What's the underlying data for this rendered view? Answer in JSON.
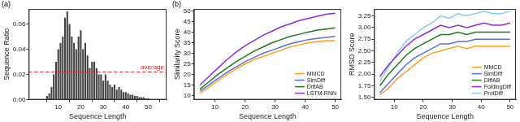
{
  "chart_data": [
    {
      "type": "bar",
      "panel_label": "(a)",
      "x_label": "Sequence Length",
      "y_label": "Sequence Ratio",
      "x": [
        5,
        6,
        7,
        8,
        9,
        10,
        11,
        12,
        13,
        14,
        15,
        16,
        17,
        18,
        19,
        20,
        21,
        22,
        23,
        24,
        25,
        26,
        27,
        28,
        29,
        30,
        31,
        32,
        33,
        34,
        35,
        36,
        37,
        38,
        39,
        40,
        41,
        42,
        43,
        44,
        45,
        46,
        47,
        48,
        49,
        50
      ],
      "values": [
        0.003,
        0.005,
        0.01,
        0.02,
        0.03,
        0.04,
        0.045,
        0.05,
        0.065,
        0.07,
        0.06,
        0.05,
        0.045,
        0.04,
        0.05,
        0.055,
        0.04,
        0.045,
        0.035,
        0.025,
        0.03,
        0.03,
        0.025,
        0.02,
        0.02,
        0.015,
        0.02,
        0.015,
        0.012,
        0.01,
        0.012,
        0.008,
        0.01,
        0.008,
        0.006,
        0.006,
        0.005,
        0.004,
        0.004,
        0.003,
        0.003,
        0.002,
        0.002,
        0.002,
        0.001,
        0.001
      ],
      "color": "#444444",
      "xlim": [
        3,
        52
      ],
      "xticks": [
        10,
        20,
        30,
        40,
        50
      ],
      "ylim": [
        0,
        0.072
      ],
      "yticks": [
        {
          "value": 0,
          "label": "0.00"
        },
        {
          "value": 0.02,
          "label": "0.02"
        },
        {
          "value": 0.04,
          "label": "0.04"
        },
        {
          "value": 0.06,
          "label": "0.06"
        }
      ],
      "grid": false,
      "annotations": [
        {
          "text": "average",
          "y": 0.022,
          "color": "#dd2222",
          "line_style": "dashed"
        }
      ]
    },
    {
      "type": "line",
      "panel_label": "(b)",
      "x_label": "Sequence Length",
      "y_label": "Similarity Score",
      "x": [
        5,
        8,
        11,
        14,
        17,
        20,
        23,
        26,
        29,
        32,
        35,
        38,
        41,
        44,
        47,
        50
      ],
      "series": [
        {
          "name": "MMCD",
          "color": "#ff9f1c",
          "values": [
            11,
            14,
            17,
            20,
            22.5,
            25,
            27,
            28.5,
            30,
            31.5,
            33,
            34,
            35,
            35.5,
            36,
            36
          ]
        },
        {
          "name": "SimDiff",
          "color": "#5b6ee1",
          "values": [
            12,
            15,
            18,
            21,
            23.5,
            26,
            28,
            30,
            31.5,
            33,
            34.5,
            35.5,
            36.5,
            37,
            37.5,
            38
          ]
        },
        {
          "name": "DiffAB",
          "color": "#1f7a1f",
          "values": [
            13,
            16.5,
            20,
            23,
            26,
            28.5,
            31,
            33,
            35,
            36.5,
            38,
            39,
            40,
            41,
            41.5,
            42
          ]
        },
        {
          "name": "LSTM-RNN",
          "color": "#8a2be2",
          "values": [
            15,
            19,
            23,
            27,
            30.5,
            33.5,
            36,
            38.5,
            40.5,
            42.5,
            44,
            45.5,
            46.5,
            47.5,
            48.5,
            49
          ]
        }
      ],
      "xlim": [
        3,
        52
      ],
      "xticks": [
        10,
        20,
        30,
        40,
        50
      ],
      "ylim": [
        8,
        51
      ],
      "yticks": [
        10,
        15,
        20,
        25,
        30,
        35,
        40,
        45,
        50
      ],
      "grid": false,
      "legend": "lower right"
    },
    {
      "type": "line",
      "x_label": "Sequence Length",
      "y_label": "RMSD Score",
      "x": [
        5,
        8,
        11,
        14,
        17,
        20,
        23,
        26,
        29,
        32,
        35,
        38,
        41,
        44,
        47,
        50
      ],
      "series": [
        {
          "name": "MMCD",
          "color": "#ff9f1c",
          "values": [
            1.55,
            1.7,
            1.9,
            2.05,
            2.2,
            2.35,
            2.45,
            2.5,
            2.55,
            2.6,
            2.55,
            2.6,
            2.6,
            2.6,
            2.6,
            2.6
          ]
        },
        {
          "name": "SimDiff",
          "color": "#5b6ee1",
          "values": [
            1.6,
            1.8,
            2.0,
            2.2,
            2.35,
            2.45,
            2.55,
            2.65,
            2.65,
            2.7,
            2.7,
            2.75,
            2.75,
            2.75,
            2.75,
            2.75
          ]
        },
        {
          "name": "DiffAB",
          "color": "#1f7a1f",
          "values": [
            1.75,
            2.0,
            2.2,
            2.4,
            2.55,
            2.65,
            2.75,
            2.85,
            2.85,
            2.9,
            2.85,
            2.9,
            2.9,
            2.9,
            2.9,
            2.9
          ]
        },
        {
          "name": "FoldingDiff",
          "color": "#8a2be2",
          "values": [
            1.95,
            2.2,
            2.4,
            2.6,
            2.75,
            2.85,
            2.95,
            3.05,
            3.0,
            3.05,
            3.0,
            3.05,
            3.1,
            3.05,
            3.05,
            3.1
          ]
        },
        {
          "name": "ProtDiff",
          "color": "#87ceeb",
          "values": [
            1.85,
            2.15,
            2.45,
            2.7,
            2.85,
            3.0,
            3.1,
            3.25,
            3.2,
            3.3,
            3.25,
            3.3,
            3.35,
            3.3,
            3.3,
            3.35
          ]
        }
      ],
      "xlim": [
        3,
        52
      ],
      "xticks": [
        10,
        20,
        30,
        40,
        50
      ],
      "ylim": [
        1.45,
        3.4
      ],
      "yticks": [
        {
          "value": 1.5,
          "label": "1.50"
        },
        {
          "value": 1.75,
          "label": "1.75"
        },
        {
          "value": 2,
          "label": "2.00"
        },
        {
          "value": 2.25,
          "label": "2.25"
        },
        {
          "value": 2.5,
          "label": "2.50"
        },
        {
          "value": 2.75,
          "label": "2.75"
        },
        {
          "value": 3,
          "label": "3.00"
        },
        {
          "value": 3.25,
          "label": "3.25"
        }
      ],
      "grid": false,
      "legend": "lower right"
    }
  ]
}
